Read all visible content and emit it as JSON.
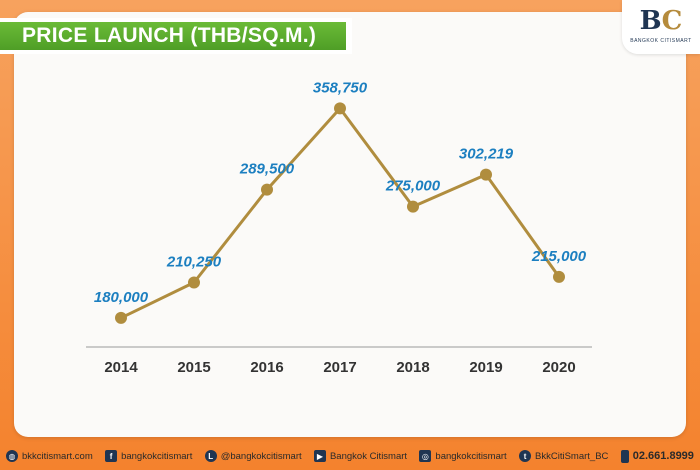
{
  "header": {
    "title": "PRICE LAUNCH (THB/SQ.M.)"
  },
  "logo": {
    "text_main": "B",
    "text_accent": "C",
    "subtitle": "BANGKOK CITISMART"
  },
  "chart_data": {
    "type": "line",
    "title": "PRICE LAUNCH (THB/SQ.M.)",
    "categories": [
      "2014",
      "2015",
      "2016",
      "2017",
      "2018",
      "2019",
      "2020"
    ],
    "values": [
      180000,
      210250,
      289500,
      358750,
      275000,
      302219,
      215000
    ],
    "data_labels": [
      "180,000",
      "210,250",
      "289,500",
      "358,750",
      "275,000",
      "302,219",
      "215,000"
    ],
    "xlabel": "",
    "ylabel": "",
    "ylim": [
      110000,
      400000
    ],
    "grid": false,
    "colors": {
      "line": "#b08d3e",
      "marker": "#b08d3e",
      "label": "#1c7fc0",
      "axis": "#9a9a9a",
      "tick": "#333333"
    }
  },
  "footer": {
    "items": [
      {
        "icon": "globe-icon",
        "glyph": "◍",
        "text": "bkkcitismart.com"
      },
      {
        "icon": "facebook-icon",
        "glyph": "f",
        "text": "bangkokcitismart"
      },
      {
        "icon": "line-icon",
        "glyph": "L",
        "text": "@bangkokcitismart"
      },
      {
        "icon": "youtube-icon",
        "glyph": "▶",
        "text": "Bangkok Citismart"
      },
      {
        "icon": "instagram-icon",
        "glyph": "◎",
        "text": "bangkokcitismart"
      },
      {
        "icon": "twitter-icon",
        "glyph": "t",
        "text": "BkkCitiSmart_BC"
      },
      {
        "icon": "phone-icon",
        "glyph": "",
        "text": "02.661.8999"
      }
    ]
  }
}
